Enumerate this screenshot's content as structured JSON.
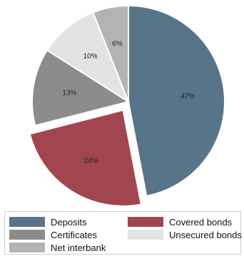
{
  "chart_data": {
    "type": "pie",
    "slices": [
      {
        "label": "Deposits",
        "value": 47,
        "display": "47%",
        "color": "#587489",
        "exploded": false
      },
      {
        "label": "Covered bonds",
        "value": 24,
        "display": "24%",
        "color": "#a1464f",
        "exploded": true
      },
      {
        "label": "Certificates",
        "value": 13,
        "display": "13%",
        "color": "#8c8c8c",
        "exploded": false
      },
      {
        "label": "Unsecured bonds",
        "value": 10,
        "display": "10%",
        "color": "#e3e3e3",
        "exploded": false
      },
      {
        "label": "Net interbank",
        "value": 6,
        "display": "6%",
        "color": "#b3b3b3",
        "exploded": false
      }
    ],
    "legend_order": [
      "Deposits",
      "Covered bonds",
      "Certificates",
      "Unsecured bonds",
      "Net interbank"
    ],
    "legend_position": "bottom"
  }
}
